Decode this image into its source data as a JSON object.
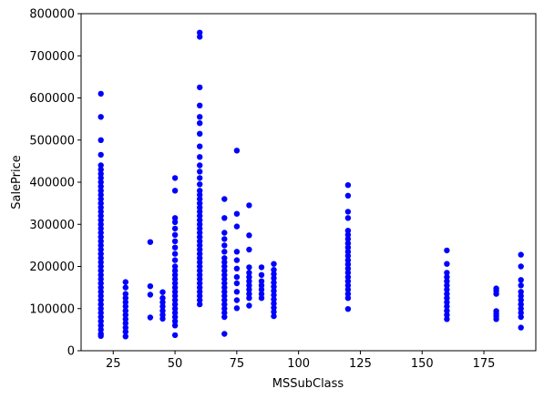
{
  "chart_data": {
    "type": "scatter",
    "xlabel": "MSSubClass",
    "ylabel": "SalePrice",
    "xlim": [
      12,
      196
    ],
    "ylim": [
      0,
      800000
    ],
    "x_ticks": [
      25,
      50,
      75,
      100,
      125,
      150,
      175
    ],
    "y_ticks": [
      0,
      100000,
      200000,
      300000,
      400000,
      500000,
      600000,
      700000,
      800000
    ],
    "x_tick_labels": [
      "25",
      "50",
      "75",
      "100",
      "125",
      "150",
      "175"
    ],
    "y_tick_labels": [
      "0",
      "100000",
      "200000",
      "300000",
      "400000",
      "500000",
      "600000",
      "700000",
      "800000"
    ],
    "point_color": "#0000ff",
    "grid": false,
    "series": [
      {
        "points": [
          [
            20,
            35000
          ],
          [
            20,
            40000
          ],
          [
            20,
            50000
          ],
          [
            20,
            60000
          ],
          [
            20,
            70000
          ],
          [
            20,
            80000
          ],
          [
            20,
            90000
          ],
          [
            20,
            100000
          ],
          [
            20,
            110000
          ],
          [
            20,
            120000
          ],
          [
            20,
            130000
          ],
          [
            20,
            140000
          ],
          [
            20,
            150000
          ],
          [
            20,
            160000
          ],
          [
            20,
            170000
          ],
          [
            20,
            180000
          ],
          [
            20,
            190000
          ],
          [
            20,
            200000
          ],
          [
            20,
            210000
          ],
          [
            20,
            220000
          ],
          [
            20,
            230000
          ],
          [
            20,
            240000
          ],
          [
            20,
            250000
          ],
          [
            20,
            260000
          ],
          [
            20,
            270000
          ],
          [
            20,
            280000
          ],
          [
            20,
            290000
          ],
          [
            20,
            300000
          ],
          [
            20,
            310000
          ],
          [
            20,
            320000
          ],
          [
            20,
            330000
          ],
          [
            20,
            340000
          ],
          [
            20,
            350000
          ],
          [
            20,
            360000
          ],
          [
            20,
            370000
          ],
          [
            20,
            380000
          ],
          [
            20,
            390000
          ],
          [
            20,
            400000
          ],
          [
            20,
            410000
          ],
          [
            20,
            420000
          ],
          [
            20,
            430000
          ],
          [
            20,
            440000
          ],
          [
            20,
            465000
          ],
          [
            20,
            500000
          ],
          [
            20,
            555000
          ],
          [
            20,
            610000
          ],
          [
            30,
            34000
          ],
          [
            30,
            45000
          ],
          [
            30,
            55000
          ],
          [
            30,
            65000
          ],
          [
            30,
            75000
          ],
          [
            30,
            85000
          ],
          [
            30,
            95000
          ],
          [
            30,
            105000
          ],
          [
            30,
            115000
          ],
          [
            30,
            125000
          ],
          [
            30,
            135000
          ],
          [
            30,
            150000
          ],
          [
            30,
            163000
          ],
          [
            40,
            79000
          ],
          [
            40,
            133000
          ],
          [
            40,
            153000
          ],
          [
            40,
            258000
          ],
          [
            45,
            76000
          ],
          [
            45,
            85000
          ],
          [
            45,
            95000
          ],
          [
            45,
            105000
          ],
          [
            45,
            115000
          ],
          [
            45,
            125000
          ],
          [
            45,
            139000
          ],
          [
            50,
            37000
          ],
          [
            50,
            60000
          ],
          [
            50,
            70000
          ],
          [
            50,
            80000
          ],
          [
            50,
            90000
          ],
          [
            50,
            100000
          ],
          [
            50,
            110000
          ],
          [
            50,
            120000
          ],
          [
            50,
            130000
          ],
          [
            50,
            140000
          ],
          [
            50,
            150000
          ],
          [
            50,
            160000
          ],
          [
            50,
            170000
          ],
          [
            50,
            180000
          ],
          [
            50,
            190000
          ],
          [
            50,
            200000
          ],
          [
            50,
            215000
          ],
          [
            50,
            230000
          ],
          [
            50,
            245000
          ],
          [
            50,
            260000
          ],
          [
            50,
            275000
          ],
          [
            50,
            290000
          ],
          [
            50,
            305000
          ],
          [
            50,
            315000
          ],
          [
            50,
            380000
          ],
          [
            50,
            410000
          ],
          [
            60,
            110000
          ],
          [
            60,
            120000
          ],
          [
            60,
            130000
          ],
          [
            60,
            140000
          ],
          [
            60,
            150000
          ],
          [
            60,
            160000
          ],
          [
            60,
            170000
          ],
          [
            60,
            180000
          ],
          [
            60,
            190000
          ],
          [
            60,
            200000
          ],
          [
            60,
            210000
          ],
          [
            60,
            220000
          ],
          [
            60,
            230000
          ],
          [
            60,
            240000
          ],
          [
            60,
            250000
          ],
          [
            60,
            260000
          ],
          [
            60,
            270000
          ],
          [
            60,
            280000
          ],
          [
            60,
            290000
          ],
          [
            60,
            300000
          ],
          [
            60,
            310000
          ],
          [
            60,
            320000
          ],
          [
            60,
            330000
          ],
          [
            60,
            340000
          ],
          [
            60,
            350000
          ],
          [
            60,
            360000
          ],
          [
            60,
            370000
          ],
          [
            60,
            380000
          ],
          [
            60,
            395000
          ],
          [
            60,
            410000
          ],
          [
            60,
            425000
          ],
          [
            60,
            440000
          ],
          [
            60,
            460000
          ],
          [
            60,
            485000
          ],
          [
            60,
            515000
          ],
          [
            60,
            540000
          ],
          [
            60,
            555000
          ],
          [
            60,
            582000
          ],
          [
            60,
            625000
          ],
          [
            60,
            745000
          ],
          [
            60,
            755000
          ],
          [
            70,
            40000
          ],
          [
            70,
            80000
          ],
          [
            70,
            90000
          ],
          [
            70,
            100000
          ],
          [
            70,
            110000
          ],
          [
            70,
            120000
          ],
          [
            70,
            130000
          ],
          [
            70,
            140000
          ],
          [
            70,
            150000
          ],
          [
            70,
            160000
          ],
          [
            70,
            170000
          ],
          [
            70,
            180000
          ],
          [
            70,
            190000
          ],
          [
            70,
            200000
          ],
          [
            70,
            210000
          ],
          [
            70,
            220000
          ],
          [
            70,
            235000
          ],
          [
            70,
            250000
          ],
          [
            70,
            265000
          ],
          [
            70,
            280000
          ],
          [
            70,
            315000
          ],
          [
            70,
            360000
          ],
          [
            75,
            101000
          ],
          [
            75,
            120000
          ],
          [
            75,
            140000
          ],
          [
            75,
            160000
          ],
          [
            75,
            175000
          ],
          [
            75,
            195000
          ],
          [
            75,
            215000
          ],
          [
            75,
            235000
          ],
          [
            75,
            295000
          ],
          [
            75,
            325000
          ],
          [
            75,
            475000
          ],
          [
            80,
            107000
          ],
          [
            80,
            125000
          ],
          [
            80,
            135000
          ],
          [
            80,
            145000
          ],
          [
            80,
            155000
          ],
          [
            80,
            165000
          ],
          [
            80,
            175000
          ],
          [
            80,
            185000
          ],
          [
            80,
            198000
          ],
          [
            80,
            240000
          ],
          [
            80,
            274000
          ],
          [
            80,
            345000
          ],
          [
            85,
            125000
          ],
          [
            85,
            135000
          ],
          [
            85,
            145000
          ],
          [
            85,
            155000
          ],
          [
            85,
            165000
          ],
          [
            85,
            180000
          ],
          [
            85,
            198000
          ],
          [
            90,
            82000
          ],
          [
            90,
            92000
          ],
          [
            90,
            102000
          ],
          [
            90,
            112000
          ],
          [
            90,
            122000
          ],
          [
            90,
            132000
          ],
          [
            90,
            142000
          ],
          [
            90,
            152000
          ],
          [
            90,
            162000
          ],
          [
            90,
            172000
          ],
          [
            90,
            182000
          ],
          [
            90,
            192000
          ],
          [
            90,
            206000
          ],
          [
            120,
            99000
          ],
          [
            120,
            125000
          ],
          [
            120,
            135000
          ],
          [
            120,
            145000
          ],
          [
            120,
            155000
          ],
          [
            120,
            165000
          ],
          [
            120,
            175000
          ],
          [
            120,
            185000
          ],
          [
            120,
            195000
          ],
          [
            120,
            205000
          ],
          [
            120,
            215000
          ],
          [
            120,
            225000
          ],
          [
            120,
            235000
          ],
          [
            120,
            245000
          ],
          [
            120,
            255000
          ],
          [
            120,
            265000
          ],
          [
            120,
            275000
          ],
          [
            120,
            285000
          ],
          [
            120,
            315000
          ],
          [
            120,
            330000
          ],
          [
            120,
            368000
          ],
          [
            120,
            393000
          ],
          [
            160,
            75000
          ],
          [
            160,
            85000
          ],
          [
            160,
            95000
          ],
          [
            160,
            105000
          ],
          [
            160,
            115000
          ],
          [
            160,
            125000
          ],
          [
            160,
            135000
          ],
          [
            160,
            145000
          ],
          [
            160,
            155000
          ],
          [
            160,
            165000
          ],
          [
            160,
            175000
          ],
          [
            160,
            185000
          ],
          [
            160,
            206000
          ],
          [
            160,
            238000
          ],
          [
            180,
            75000
          ],
          [
            180,
            82000
          ],
          [
            180,
            88000
          ],
          [
            180,
            94000
          ],
          [
            180,
            135000
          ],
          [
            180,
            142000
          ],
          [
            180,
            148000
          ],
          [
            190,
            55000
          ],
          [
            190,
            80000
          ],
          [
            190,
            90000
          ],
          [
            190,
            100000
          ],
          [
            190,
            110000
          ],
          [
            190,
            120000
          ],
          [
            190,
            130000
          ],
          [
            190,
            140000
          ],
          [
            190,
            155000
          ],
          [
            190,
            168000
          ],
          [
            190,
            200000
          ],
          [
            190,
            228000
          ]
        ]
      }
    ]
  }
}
